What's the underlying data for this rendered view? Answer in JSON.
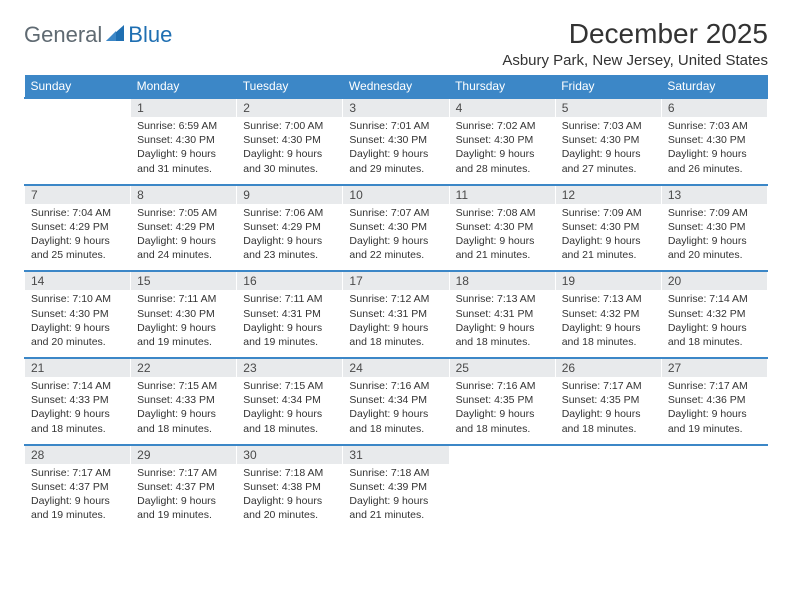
{
  "logo": {
    "general": "General",
    "blue": "Blue"
  },
  "title": "December 2025",
  "location": "Asbury Park, New Jersey, United States",
  "colors": {
    "header_bg": "#3c87c7",
    "header_text": "#ffffff",
    "daynum_bg": "#e8eaec",
    "row_divider": "#3c87c7",
    "logo_gray": "#5f6a72",
    "logo_blue": "#1f6fb2"
  },
  "day_headers": [
    "Sunday",
    "Monday",
    "Tuesday",
    "Wednesday",
    "Thursday",
    "Friday",
    "Saturday"
  ],
  "weeks": [
    {
      "nums": [
        "",
        "1",
        "2",
        "3",
        "4",
        "5",
        "6"
      ],
      "info": [
        null,
        {
          "sunrise": "6:59 AM",
          "sunset": "4:30 PM",
          "daylight": "9 hours and 31 minutes."
        },
        {
          "sunrise": "7:00 AM",
          "sunset": "4:30 PM",
          "daylight": "9 hours and 30 minutes."
        },
        {
          "sunrise": "7:01 AM",
          "sunset": "4:30 PM",
          "daylight": "9 hours and 29 minutes."
        },
        {
          "sunrise": "7:02 AM",
          "sunset": "4:30 PM",
          "daylight": "9 hours and 28 minutes."
        },
        {
          "sunrise": "7:03 AM",
          "sunset": "4:30 PM",
          "daylight": "9 hours and 27 minutes."
        },
        {
          "sunrise": "7:03 AM",
          "sunset": "4:30 PM",
          "daylight": "9 hours and 26 minutes."
        }
      ]
    },
    {
      "nums": [
        "7",
        "8",
        "9",
        "10",
        "11",
        "12",
        "13"
      ],
      "info": [
        {
          "sunrise": "7:04 AM",
          "sunset": "4:29 PM",
          "daylight": "9 hours and 25 minutes."
        },
        {
          "sunrise": "7:05 AM",
          "sunset": "4:29 PM",
          "daylight": "9 hours and 24 minutes."
        },
        {
          "sunrise": "7:06 AM",
          "sunset": "4:29 PM",
          "daylight": "9 hours and 23 minutes."
        },
        {
          "sunrise": "7:07 AM",
          "sunset": "4:30 PM",
          "daylight": "9 hours and 22 minutes."
        },
        {
          "sunrise": "7:08 AM",
          "sunset": "4:30 PM",
          "daylight": "9 hours and 21 minutes."
        },
        {
          "sunrise": "7:09 AM",
          "sunset": "4:30 PM",
          "daylight": "9 hours and 21 minutes."
        },
        {
          "sunrise": "7:09 AM",
          "sunset": "4:30 PM",
          "daylight": "9 hours and 20 minutes."
        }
      ]
    },
    {
      "nums": [
        "14",
        "15",
        "16",
        "17",
        "18",
        "19",
        "20"
      ],
      "info": [
        {
          "sunrise": "7:10 AM",
          "sunset": "4:30 PM",
          "daylight": "9 hours and 20 minutes."
        },
        {
          "sunrise": "7:11 AM",
          "sunset": "4:30 PM",
          "daylight": "9 hours and 19 minutes."
        },
        {
          "sunrise": "7:11 AM",
          "sunset": "4:31 PM",
          "daylight": "9 hours and 19 minutes."
        },
        {
          "sunrise": "7:12 AM",
          "sunset": "4:31 PM",
          "daylight": "9 hours and 18 minutes."
        },
        {
          "sunrise": "7:13 AM",
          "sunset": "4:31 PM",
          "daylight": "9 hours and 18 minutes."
        },
        {
          "sunrise": "7:13 AM",
          "sunset": "4:32 PM",
          "daylight": "9 hours and 18 minutes."
        },
        {
          "sunrise": "7:14 AM",
          "sunset": "4:32 PM",
          "daylight": "9 hours and 18 minutes."
        }
      ]
    },
    {
      "nums": [
        "21",
        "22",
        "23",
        "24",
        "25",
        "26",
        "27"
      ],
      "info": [
        {
          "sunrise": "7:14 AM",
          "sunset": "4:33 PM",
          "daylight": "9 hours and 18 minutes."
        },
        {
          "sunrise": "7:15 AM",
          "sunset": "4:33 PM",
          "daylight": "9 hours and 18 minutes."
        },
        {
          "sunrise": "7:15 AM",
          "sunset": "4:34 PM",
          "daylight": "9 hours and 18 minutes."
        },
        {
          "sunrise": "7:16 AM",
          "sunset": "4:34 PM",
          "daylight": "9 hours and 18 minutes."
        },
        {
          "sunrise": "7:16 AM",
          "sunset": "4:35 PM",
          "daylight": "9 hours and 18 minutes."
        },
        {
          "sunrise": "7:17 AM",
          "sunset": "4:35 PM",
          "daylight": "9 hours and 18 minutes."
        },
        {
          "sunrise": "7:17 AM",
          "sunset": "4:36 PM",
          "daylight": "9 hours and 19 minutes."
        }
      ]
    },
    {
      "nums": [
        "28",
        "29",
        "30",
        "31",
        "",
        "",
        ""
      ],
      "info": [
        {
          "sunrise": "7:17 AM",
          "sunset": "4:37 PM",
          "daylight": "9 hours and 19 minutes."
        },
        {
          "sunrise": "7:17 AM",
          "sunset": "4:37 PM",
          "daylight": "9 hours and 19 minutes."
        },
        {
          "sunrise": "7:18 AM",
          "sunset": "4:38 PM",
          "daylight": "9 hours and 20 minutes."
        },
        {
          "sunrise": "7:18 AM",
          "sunset": "4:39 PM",
          "daylight": "9 hours and 21 minutes."
        },
        null,
        null,
        null
      ]
    }
  ],
  "labels": {
    "sunrise": "Sunrise:",
    "sunset": "Sunset:",
    "daylight": "Daylight:"
  }
}
